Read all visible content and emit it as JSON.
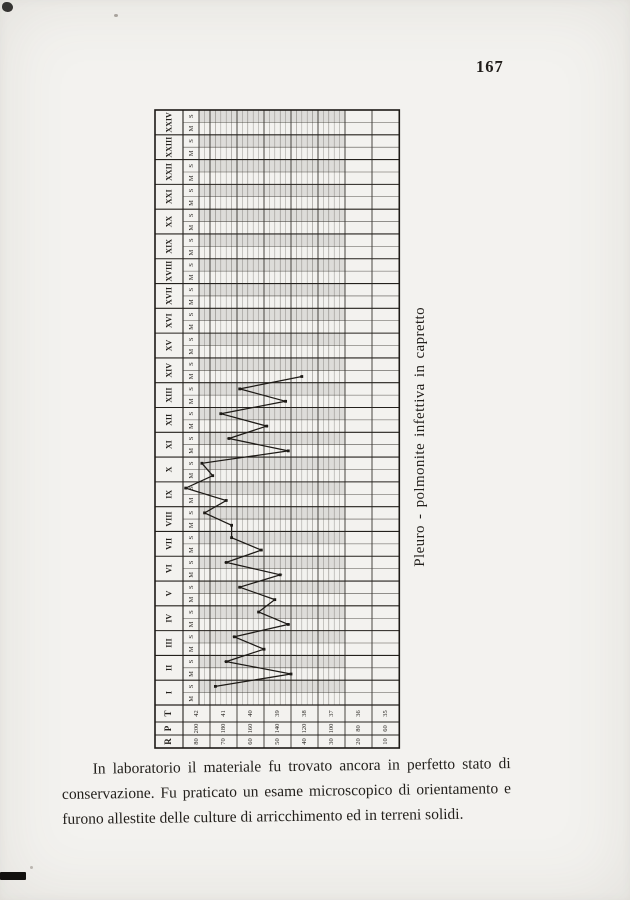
{
  "page": {
    "number": "167"
  },
  "figure": {
    "caption": "Pleuro - polmonite infettiva in capretto"
  },
  "body_text": {
    "lines": [
      "In laboratorio il materiale fu trovato ancora in perfetto stato di",
      "conservazione. Fu praticato un esame microscopico di orientamento e",
      "furono allestite delle culture di arricchimento ed in terreni solidi."
    ]
  },
  "chart_data": {
    "type": "line",
    "title": "Pleuro - polmonite infettiva in capretto",
    "orientation": "rotated 90deg CCW: days run bottom to top, temperature decreases left to right",
    "day_labels": [
      "I",
      "II",
      "III",
      "IV",
      "V",
      "VI",
      "VII",
      "VIII",
      "IX",
      "X",
      "XI",
      "XII",
      "XIII",
      "XIV",
      "XV",
      "XVI",
      "XVII",
      "XVIII",
      "XIX",
      "XX",
      "XXI",
      "XXII",
      "XXIII",
      "XXIV"
    ],
    "subrow_labels": [
      "M",
      "S"
    ],
    "scale_rows": [
      {
        "label": "T",
        "values": [
          "42",
          "41",
          "40",
          "39",
          "38",
          "37",
          "36",
          "35"
        ]
      },
      {
        "label": "P",
        "values": [
          "200",
          "180",
          "160",
          "140",
          "120",
          "100",
          "80",
          "60"
        ]
      },
      {
        "label": "R",
        "values": [
          "80",
          "70",
          "60",
          "50",
          "40",
          "30",
          "20",
          "10"
        ]
      }
    ],
    "t_axis_range": [
      35,
      42
    ],
    "grid": "heavy line each 1 degree, fine lines each 0.2 degree",
    "legend_position": "caption right of rotated chart",
    "temperature_points": [
      {
        "day": "I",
        "time": "S",
        "t": 40.8
      },
      {
        "day": "II",
        "time": "M",
        "t": 38.0
      },
      {
        "day": "II",
        "time": "S",
        "t": 40.4
      },
      {
        "day": "III",
        "time": "M",
        "t": 39.0
      },
      {
        "day": "III",
        "time": "S",
        "t": 40.1
      },
      {
        "day": "IV",
        "time": "M",
        "t": 38.1
      },
      {
        "day": "IV",
        "time": "S",
        "t": 39.2
      },
      {
        "day": "V",
        "time": "M",
        "t": 38.6
      },
      {
        "day": "V",
        "time": "S",
        "t": 39.9
      },
      {
        "day": "VI",
        "time": "M",
        "t": 38.4
      },
      {
        "day": "VI",
        "time": "S",
        "t": 40.4
      },
      {
        "day": "VII",
        "time": "M",
        "t": 39.1
      },
      {
        "day": "VII",
        "time": "S",
        "t": 40.2
      },
      {
        "day": "VIII",
        "time": "M",
        "t": 40.2
      },
      {
        "day": "VIII",
        "time": "S",
        "t": 41.2
      },
      {
        "day": "IX",
        "time": "M",
        "t": 40.4
      },
      {
        "day": "IX",
        "time": "S",
        "t": 41.9
      },
      {
        "day": "X",
        "time": "M",
        "t": 40.9
      },
      {
        "day": "X",
        "time": "S",
        "t": 41.3
      },
      {
        "day": "XI",
        "time": "M",
        "t": 38.1
      },
      {
        "day": "XI",
        "time": "S",
        "t": 40.3
      },
      {
        "day": "XII",
        "time": "M",
        "t": 38.9
      },
      {
        "day": "XII",
        "time": "S",
        "t": 40.6
      },
      {
        "day": "XIII",
        "time": "M",
        "t": 38.2
      },
      {
        "day": "XIII",
        "time": "S",
        "t": 39.9
      },
      {
        "day": "XIV",
        "time": "M",
        "t": 37.6
      }
    ]
  }
}
